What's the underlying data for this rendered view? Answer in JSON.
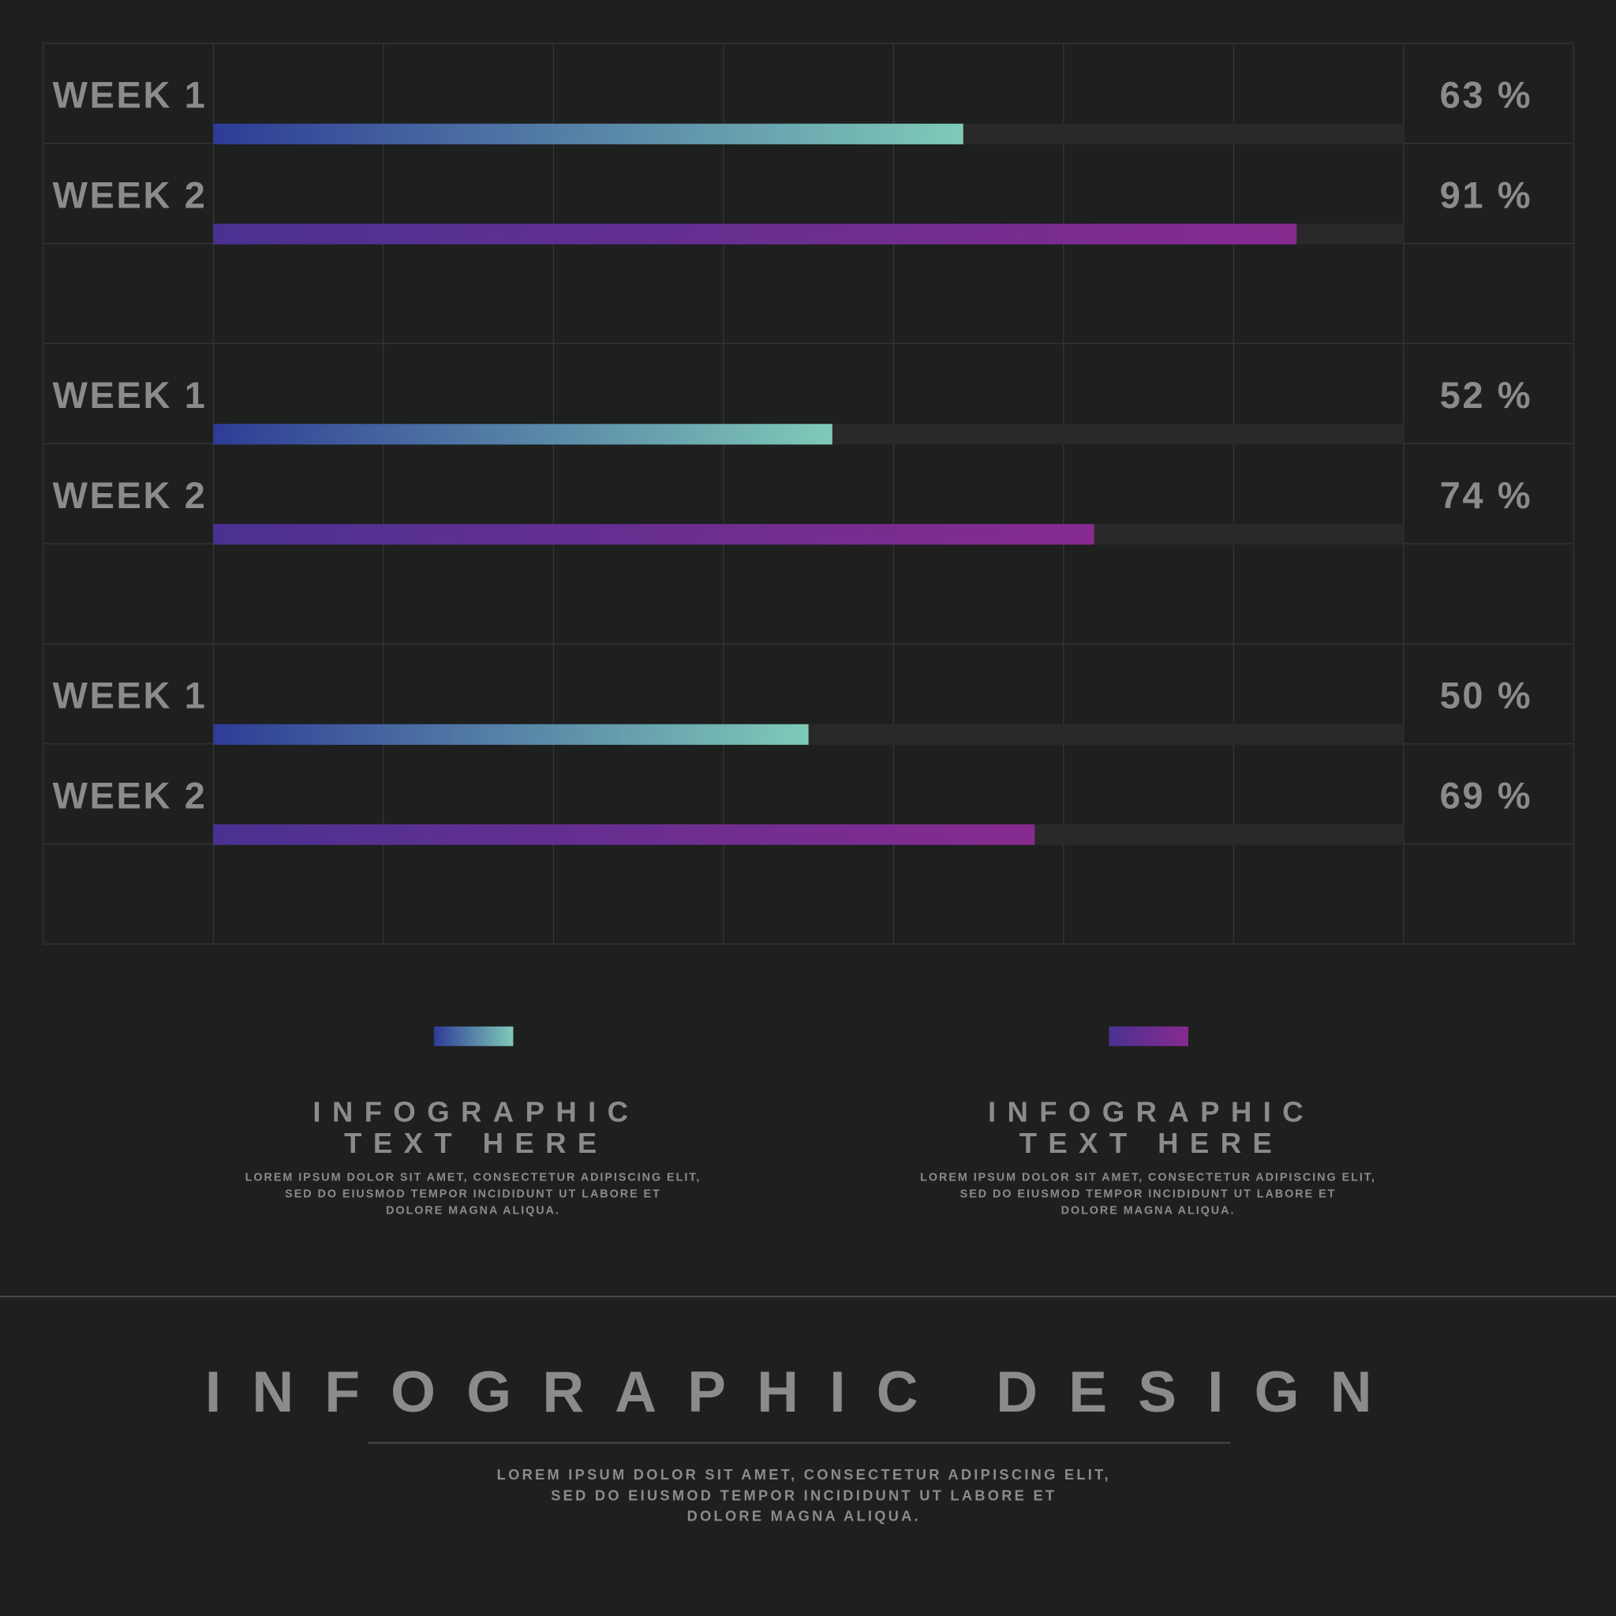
{
  "chart_data": [
    {
      "type": "bar",
      "orientation": "horizontal",
      "categories": [
        "WEEK 1",
        "WEEK 2"
      ],
      "values": [
        63,
        91
      ],
      "value_labels": [
        "63 %",
        "91 %"
      ],
      "xlim": [
        0,
        100
      ],
      "colors": [
        [
          "#2e3c96",
          "#7fcab8"
        ],
        [
          "#4a3191",
          "#872b8f"
        ]
      ]
    },
    {
      "type": "bar",
      "orientation": "horizontal",
      "categories": [
        "WEEK 1",
        "WEEK 2"
      ],
      "values": [
        52,
        74
      ],
      "value_labels": [
        "52 %",
        "74 %"
      ],
      "xlim": [
        0,
        100
      ],
      "colors": [
        [
          "#2e3c96",
          "#7fcab8"
        ],
        [
          "#4a3191",
          "#872b8f"
        ]
      ]
    },
    {
      "type": "bar",
      "orientation": "horizontal",
      "categories": [
        "WEEK 1",
        "WEEK 2"
      ],
      "values": [
        50,
        69
      ],
      "value_labels": [
        "50 %",
        "69 %"
      ],
      "xlim": [
        0,
        100
      ],
      "colors": [
        [
          "#2e3c96",
          "#7fcab8"
        ],
        [
          "#4a3191",
          "#872b8f"
        ]
      ]
    }
  ],
  "legend": [
    {
      "color": [
        "#2e3c96",
        "#7fcab8"
      ],
      "title": [
        "INFOGRAPHIC",
        "TEXT HERE"
      ],
      "body": [
        "LOREM IPSUM DOLOR SIT AMET, CONSECTETUR ADIPISCING ELIT,",
        "SED DO EIUSMOD TEMPOR INCIDIDUNT UT LABORE ET",
        "DOLORE MAGNA ALIQUA."
      ]
    },
    {
      "color": [
        "#4a3191",
        "#872b8f"
      ],
      "title": [
        "INFOGRAPHIC",
        "TEXT HERE"
      ],
      "body": [
        "LOREM IPSUM DOLOR SIT AMET, CONSECTETUR ADIPISCING ELIT,",
        "SED DO EIUSMOD TEMPOR INCIDIDUNT UT LABORE ET",
        "DOLORE MAGNA ALIQUA."
      ]
    }
  ],
  "footer": {
    "title": "INFOGRAPHIC DESIGN",
    "body": [
      "LOREM IPSUM DOLOR SIT AMET, CONSECTETUR ADIPISCING ELIT,",
      "SED DO EIUSMOD TEMPOR INCIDIDUNT UT LABORE ET",
      "DOLORE MAGNA ALIQUA."
    ]
  }
}
